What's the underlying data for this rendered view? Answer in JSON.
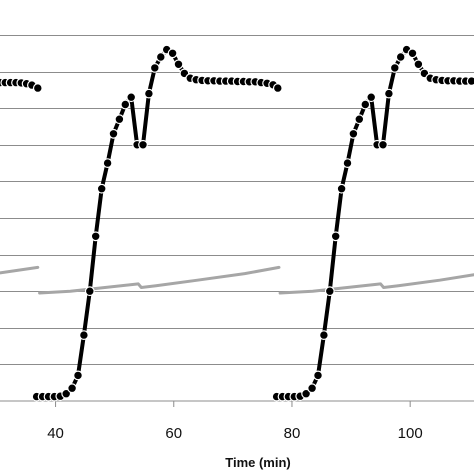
{
  "chart_data": {
    "type": "line",
    "xlabel": "Time (min)",
    "x_ticks": [
      40,
      60,
      80,
      100
    ],
    "xlim": [
      30.6,
      110.8
    ],
    "ylim": [
      0,
      10
    ],
    "gridlines_y": [
      1,
      2,
      3,
      4,
      5,
      6,
      7,
      8,
      9,
      10
    ],
    "grid": true,
    "legend": "none",
    "colors": {
      "dark_series": "#000000",
      "gray_series": "#a6a6a6",
      "grid": "#8c8c8c"
    },
    "series": [
      {
        "style": "dark-dotted",
        "segments": [
          {
            "x": [
              30.6,
              31.5,
              32.4,
              33.3,
              34.2,
              35.1,
              36,
              37
            ],
            "y": [
              8.7,
              8.7,
              8.7,
              8.7,
              8.69,
              8.67,
              8.63,
              8.55
            ]
          },
          {
            "x": [
              36.8,
              37.8,
              38.8,
              39.8,
              40.8,
              41.8,
              42.8,
              43.8,
              44.8,
              45.8,
              46.8,
              47.8,
              48.8,
              49.8,
              50.8,
              51.8,
              52.8,
              53.8,
              54.8,
              55.8,
              56.8,
              57.8,
              58.8,
              59.8,
              60.8,
              61.8,
              62.8,
              63.8,
              64.8,
              65.8,
              66.8,
              67.8,
              68.8,
              69.8,
              70.8,
              71.8,
              72.8,
              73.8,
              74.8,
              75.8,
              76.8,
              77.6
            ],
            "y": [
              0.12,
              0.12,
              0.12,
              0.12,
              0.13,
              0.2,
              0.35,
              0.7,
              1.8,
              3,
              4.5,
              5.8,
              6.5,
              7.3,
              7.7,
              8.1,
              8.3,
              7,
              7,
              8.4,
              9.1,
              9.4,
              9.6,
              9.5,
              9.2,
              8.95,
              8.82,
              8.78,
              8.76,
              8.75,
              8.75,
              8.74,
              8.74,
              8.74,
              8.73,
              8.73,
              8.72,
              8.72,
              8.7,
              8.68,
              8.64,
              8.55
            ]
          },
          {
            "x": [
              77.4,
              78.4,
              79.4,
              80.4,
              81.4,
              82.4,
              83.4,
              84.4,
              85.4,
              86.4,
              87.4,
              88.4,
              89.4,
              90.4,
              91.4,
              92.4,
              93.4,
              94.4,
              95.4,
              96.4,
              97.4,
              98.4,
              99.4,
              100.4,
              101.4,
              102.4,
              103.4,
              104.4,
              105.4,
              106.4,
              107.4,
              108.4,
              109.4,
              110.4
            ],
            "y": [
              0.12,
              0.12,
              0.12,
              0.12,
              0.13,
              0.2,
              0.35,
              0.7,
              1.8,
              3,
              4.5,
              5.8,
              6.5,
              7.3,
              7.7,
              8.1,
              8.3,
              7,
              7,
              8.4,
              9.1,
              9.4,
              9.6,
              9.5,
              9.2,
              8.95,
              8.82,
              8.78,
              8.76,
              8.75,
              8.75,
              8.74,
              8.74,
              8.74
            ]
          }
        ]
      },
      {
        "style": "gray-line",
        "segments": [
          {
            "x": [
              30.6,
              37
            ],
            "y": [
              3.5,
              3.65
            ]
          },
          {
            "x": [
              37.3,
              42.5,
              54,
              54.5,
              57,
              64,
              72,
              77.8
            ],
            "y": [
              2.95,
              3.0,
              3.2,
              3.1,
              3.15,
              3.3,
              3.48,
              3.65
            ]
          },
          {
            "x": [
              78,
              83.5,
              95,
              95.5,
              98,
              105,
              110.8
            ],
            "y": [
              2.95,
              3.0,
              3.2,
              3.1,
              3.15,
              3.3,
              3.45
            ]
          }
        ]
      }
    ]
  }
}
